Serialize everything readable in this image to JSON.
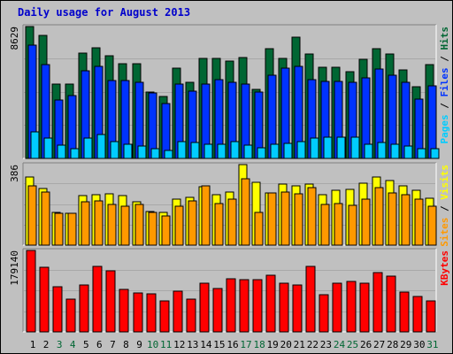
{
  "title": "Daily usage for August 2013",
  "chart_data": [
    {
      "type": "bar",
      "categories": [
        "1",
        "2",
        "3",
        "4",
        "5",
        "6",
        "7",
        "8",
        "9",
        "10",
        "11",
        "12",
        "13",
        "14",
        "15",
        "16",
        "17",
        "18",
        "19",
        "20",
        "21",
        "22",
        "23",
        "24",
        "25",
        "26",
        "27",
        "28",
        "29",
        "30",
        "31"
      ],
      "weekend_days": [
        "3",
        "4",
        "10",
        "11",
        "17",
        "18",
        "24",
        "25",
        "31"
      ],
      "ytick": "8629",
      "ylim": [
        0,
        8629
      ],
      "legend": [
        "Pages",
        "Files",
        "Hits"
      ],
      "legend_separator": " / ",
      "series": [
        {
          "name": "Hits",
          "color": "#006633",
          "values": [
            8629,
            8072,
            4890,
            4890,
            6920,
            7250,
            6700,
            6180,
            6180,
            4350,
            4040,
            5900,
            4960,
            6550,
            6550,
            6390,
            6580,
            4510,
            7200,
            6550,
            7920,
            6860,
            5940,
            5940,
            5680,
            6500,
            7160,
            6860,
            5790,
            4710,
            6120
          ]
        },
        {
          "name": "Files",
          "color": "#0033ff",
          "values": [
            7390,
            6140,
            3830,
            4100,
            5740,
            6040,
            5110,
            5110,
            5000,
            4280,
            3570,
            4870,
            4420,
            4890,
            5180,
            4990,
            4890,
            4320,
            5430,
            5910,
            6000,
            5170,
            5010,
            5010,
            5000,
            5280,
            5860,
            5470,
            5000,
            3890,
            4750
          ]
        },
        {
          "name": "Pages",
          "color": "#00ccff",
          "values": [
            1730,
            1330,
            880,
            640,
            1330,
            1570,
            1090,
            950,
            820,
            640,
            550,
            1120,
            1060,
            950,
            900,
            1120,
            860,
            720,
            910,
            970,
            1120,
            1330,
            1390,
            1390,
            1390,
            950,
            1030,
            950,
            800,
            640,
            640
          ]
        }
      ]
    },
    {
      "type": "bar",
      "categories": [
        "1",
        "2",
        "3",
        "4",
        "5",
        "6",
        "7",
        "8",
        "9",
        "10",
        "11",
        "12",
        "13",
        "14",
        "15",
        "16",
        "17",
        "18",
        "19",
        "20",
        "21",
        "22",
        "23",
        "24",
        "25",
        "26",
        "27",
        "28",
        "29",
        "30",
        "31"
      ],
      "ytick": "386",
      "ylim": [
        0,
        386
      ],
      "legend": [
        "Sites",
        "Visits"
      ],
      "legend_separator": " / ",
      "series": [
        {
          "name": "Visits",
          "color": "#ffff00",
          "values": [
            326,
            270,
            156,
            154,
            237,
            243,
            248,
            238,
            208,
            163,
            156,
            219,
            228,
            280,
            241,
            254,
            386,
            300,
            250,
            292,
            283,
            292,
            240,
            262,
            266,
            296,
            327,
            308,
            283,
            264,
            225
          ]
        },
        {
          "name": "Sites",
          "color": "#ff9900",
          "values": [
            284,
            255,
            152,
            154,
            208,
            212,
            197,
            185,
            196,
            157,
            142,
            188,
            212,
            284,
            201,
            219,
            319,
            159,
            251,
            254,
            245,
            276,
            194,
            200,
            192,
            219,
            274,
            251,
            242,
            219,
            188
          ]
        }
      ]
    },
    {
      "type": "bar",
      "categories": [
        "1",
        "2",
        "3",
        "4",
        "5",
        "6",
        "7",
        "8",
        "9",
        "10",
        "11",
        "12",
        "13",
        "14",
        "15",
        "16",
        "17",
        "18",
        "19",
        "20",
        "21",
        "22",
        "23",
        "24",
        "25",
        "26",
        "27",
        "28",
        "29",
        "30",
        "31"
      ],
      "ytick": "179140",
      "ylim": [
        0,
        179140
      ],
      "legend": [
        "KBytes"
      ],
      "series": [
        {
          "name": "KBytes",
          "color": "#ff0000",
          "values": [
            179140,
            142000,
            99000,
            73000,
            103000,
            144000,
            135000,
            93000,
            86000,
            84000,
            68000,
            89000,
            72000,
            107000,
            96000,
            116000,
            115000,
            115000,
            125000,
            107000,
            103000,
            144000,
            82000,
            107000,
            111000,
            107000,
            131000,
            122000,
            88000,
            78000,
            68000
          ]
        }
      ]
    }
  ]
}
